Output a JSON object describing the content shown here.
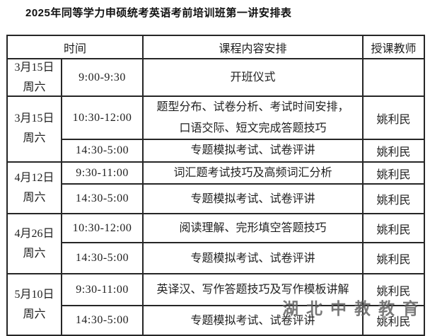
{
  "title": "2025年同等学力申硕统考英语考前培训班第一讲安排表",
  "watermark": "湖北中教教育",
  "colors": {
    "border": "#262626",
    "text": "#1f1f1f",
    "watermark": "#5b5b5b",
    "background": "#ffffff"
  },
  "table": {
    "headers": {
      "time": "时间",
      "content": "课程内容安排",
      "teacher": "授课教师"
    },
    "sections": [
      {
        "date": "3月15日",
        "weekday": "周六",
        "rows": [
          {
            "time": "9:00-9:30",
            "content": "开班仪式",
            "teacher": ""
          }
        ]
      },
      {
        "date": "3月15日",
        "weekday": "周六",
        "rows": [
          {
            "time": "10:30-12:00",
            "content": "题型分布、试卷分析、考试时间安排，口语交际、短文完成答题技巧",
            "teacher": "姚利民"
          },
          {
            "time": "14:30-5:00",
            "content": "专题模拟考试、试卷评讲",
            "teacher": "姚利民"
          }
        ]
      },
      {
        "date": "4月12日",
        "weekday": "周六",
        "rows": [
          {
            "time": "9:30-11:00",
            "content": "词汇题考试技巧及高频词汇分析",
            "teacher": "姚利民"
          },
          {
            "time": "14:30-5:00",
            "content": "专题模拟考试、试卷评讲",
            "teacher": "姚利民"
          }
        ]
      },
      {
        "date": "4月26日",
        "weekday": "周六",
        "rows": [
          {
            "time": "10:30-12:00",
            "content": "阅读理解、完形填空答题技巧",
            "teacher": "姚利民"
          },
          {
            "time": "14:30-5:00",
            "content": "专题模拟考试、试卷评讲",
            "teacher": "姚利民"
          }
        ]
      },
      {
        "date": "5月10日",
        "weekday": "周六",
        "rows": [
          {
            "time": "9:30-11:00",
            "content": "英译汉、写作答题技巧及写作模板讲解",
            "teacher": "姚利民"
          },
          {
            "time": "14:30-5:00",
            "content": "专题模拟考试、试卷评讲",
            "teacher": "姚利民"
          }
        ]
      }
    ]
  }
}
